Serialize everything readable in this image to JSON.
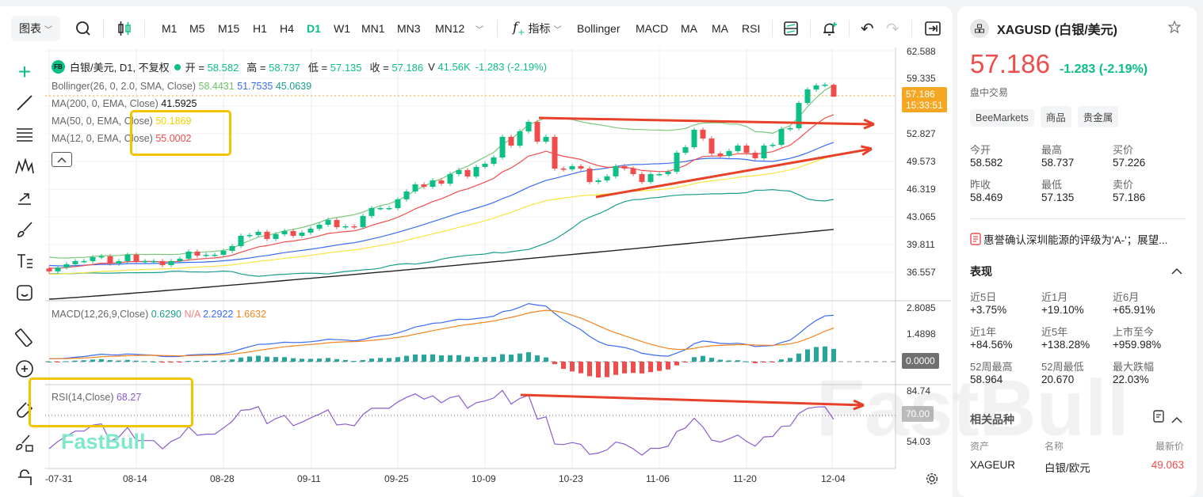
{
  "toolbar": {
    "chart_menu": "图表",
    "timeframes": [
      "M1",
      "M5",
      "M15",
      "H1",
      "H4",
      "D1",
      "W1",
      "MN1",
      "MN3",
      "MN12"
    ],
    "active_timeframe": "D1",
    "indicators_label": "指标",
    "indicator_shortcuts": [
      "Bollinger",
      "MACD",
      "MA",
      "MA",
      "RSI"
    ]
  },
  "legend": {
    "symbol_badge": "FB",
    "title": "白银/美元, D1, 不复权",
    "ohlc": [
      {
        "k": "开",
        "v": "58.582"
      },
      {
        "k": "高",
        "v": "58.737"
      },
      {
        "k": "低",
        "v": "57.135"
      },
      {
        "k": "收",
        "v": "57.186"
      }
    ],
    "volume_label": "V",
    "volume": "41.56K",
    "change": "-1.283 (-2.19%)",
    "bollinger": {
      "label": "Bollinger(26, 0, 2.0, SMA, Close)",
      "upper": "58.4431",
      "mid": "51.7535",
      "lower": "45.0639"
    },
    "ma200": {
      "label": "MA(200, 0, EMA, Close)",
      "value": "41.5925"
    },
    "ma50": {
      "label": "MA(50, 0, EMA, Close)",
      "value": "50.1869"
    },
    "ma12": {
      "label": "MA(12, 0, EMA, Close)",
      "value": "55.0002"
    },
    "macd": {
      "label": "MACD(12,26,9,Close)",
      "hist": "0.6290",
      "na": "N/A",
      "macd": "2.2922",
      "signal": "1.6632"
    },
    "rsi": {
      "label": "RSI(14,Close)",
      "value": "68.27"
    }
  },
  "colors": {
    "up": "#0cbf87",
    "down": "#f04c4c",
    "boll_upper": "#7cc77c",
    "boll_mid": "#3a6cf4",
    "boll_lower": "#1a9e8e",
    "ma200": "#222222",
    "ma50": "#f7e640",
    "ma12": "#f04c4c",
    "macd": "#3a6cf4",
    "signal": "#f5841f",
    "rsi": "#8a5cd0",
    "annotation": "#e8412a",
    "highlight": "#f5c400",
    "price_tag": "#f5a623"
  },
  "chart_data": {
    "type": "candlestick",
    "dates_axis": [
      "-07-31",
      "08-14",
      "08-28",
      "09-11",
      "09-25",
      "10-09",
      "10-23",
      "11-06",
      "11-20",
      "12-04"
    ],
    "price_axis": [
      "62.588",
      "59.335",
      "52.827",
      "49.573",
      "46.319",
      "43.065",
      "39.811",
      "36.557"
    ],
    "macd_axis": [
      "2.8085",
      "1.4898",
      "0.0000"
    ],
    "rsi_axis": [
      "84.74",
      "70.00",
      "54.03"
    ],
    "last_price": "57.186",
    "countdown": "15:33:51",
    "last_candle": {
      "open": 58.582,
      "high": 58.737,
      "low": 57.135,
      "close": 57.186
    },
    "ma200_range": [
      33.4,
      41.5925
    ],
    "closes": [
      36.66,
      37.12,
      37.5,
      37.87,
      37.87,
      38.33,
      38.43,
      37.59,
      37.87,
      38.61,
      37.87,
      37.87,
      37.87,
      37.4,
      37.87,
      38.15,
      38.98,
      38.52,
      38.61,
      38.61,
      39.07,
      39.63,
      40.84,
      40.93,
      41.31,
      40.47,
      41.03,
      41.4,
      40.84,
      41.21,
      41.68,
      42.14,
      42.7,
      41.86,
      41.96,
      41.86,
      43.17,
      44.09,
      44.09,
      44.09,
      45.12,
      46.05,
      46.88,
      46.6,
      47.35,
      46.97,
      48.09,
      48.55,
      47.81,
      48.93,
      49.3,
      50.04,
      52.46,
      51.44,
      53.11,
      54.22,
      51.9,
      52.46,
      48.74,
      48.65,
      49.02,
      48.74,
      47.16,
      47.35,
      47.82,
      49.02,
      48.74,
      48.09,
      47.16,
      48.09,
      48.09,
      48.37,
      50.6,
      51.25,
      53.3,
      52.27,
      50.51,
      50.23,
      50.79,
      51.44,
      50.6,
      49.95,
      51.44,
      51.53,
      53.39,
      53.48,
      56.45,
      58.03,
      58.5,
      58.59,
      57.19
    ]
  },
  "watermark": "FastBull",
  "side": {
    "symbol": "XAGUSD (白银/美元)",
    "price": "57.186",
    "change": "-1.283",
    "change_pct": "(-2.19%)",
    "session": "盘中交易",
    "tags": [
      "BeeMarkets",
      "商品",
      "贵金属"
    ],
    "quote": [
      {
        "k": "今开",
        "v": "58.582",
        "c": "g"
      },
      {
        "k": "最高",
        "v": "58.737",
        "c": ""
      },
      {
        "k": "买价",
        "v": "57.226",
        "c": "r"
      },
      {
        "k": "昨收",
        "v": "58.469",
        "c": ""
      },
      {
        "k": "最低",
        "v": "57.135",
        "c": ""
      },
      {
        "k": "卖价",
        "v": "57.186",
        "c": "r"
      }
    ],
    "news": "惠誉确认深圳能源的评级为'A-'；展望...",
    "perf_title": "表现",
    "perf": [
      {
        "k": "近5日",
        "v": "+3.75%",
        "c": ""
      },
      {
        "k": "近1月",
        "v": "+19.10%",
        "c": ""
      },
      {
        "k": "近6月",
        "v": "+65.91%",
        "c": ""
      },
      {
        "k": "近1年",
        "v": "+84.56%",
        "c": ""
      },
      {
        "k": "近5年",
        "v": "+138.28%",
        "c": ""
      },
      {
        "k": "上市至今",
        "v": "+959.98%",
        "c": ""
      },
      {
        "k": "52周最高",
        "v": "58.964",
        "c": ""
      },
      {
        "k": "52周最低",
        "v": "20.670",
        "c": ""
      },
      {
        "k": "最大跌幅",
        "v": "22.03%",
        "c": "g"
      }
    ],
    "related_title": "相关品种",
    "related_headers": [
      "资产",
      "名称",
      "最新价"
    ],
    "related": [
      {
        "sym": "XAGEUR",
        "name": "白银/欧元",
        "price": "49.063"
      }
    ]
  }
}
